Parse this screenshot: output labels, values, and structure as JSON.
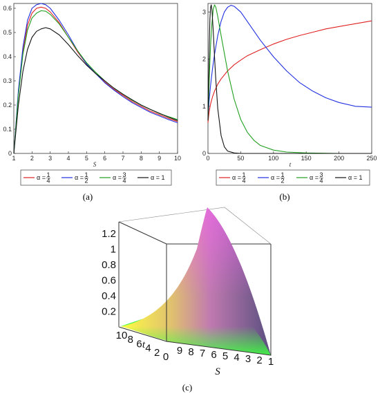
{
  "chart_data": [
    {
      "panel": "(a)",
      "type": "line",
      "xlabel": "S",
      "ylabel": "",
      "xlim": [
        1,
        10
      ],
      "ylim": [
        0,
        0.62
      ],
      "xticks": [
        "1",
        "2",
        "3",
        "4",
        "5",
        "6",
        "7",
        "8",
        "9",
        "10"
      ],
      "yticks": [
        "0",
        "0.1",
        "0.2",
        "0.3",
        "0.4",
        "0.5",
        "0.6"
      ],
      "legend_placement": "bottom",
      "series": [
        {
          "name": "α = 1/4",
          "color": "#e02020",
          "x": [
            1,
            1.25,
            1.5,
            1.75,
            2,
            2.25,
            2.5,
            2.75,
            3,
            3.5,
            4,
            4.5,
            5,
            5.5,
            6,
            6.5,
            7,
            7.5,
            8,
            8.5,
            9,
            9.5,
            10
          ],
          "y": [
            0,
            0.25,
            0.42,
            0.53,
            0.58,
            0.6,
            0.605,
            0.6,
            0.585,
            0.54,
            0.48,
            0.42,
            0.37,
            0.33,
            0.295,
            0.265,
            0.24,
            0.215,
            0.195,
            0.175,
            0.16,
            0.145,
            0.132
          ]
        },
        {
          "name": "α = 1/2",
          "color": "#2030e0",
          "x": [
            1,
            1.25,
            1.5,
            1.75,
            2,
            2.25,
            2.5,
            2.75,
            3,
            3.5,
            4,
            4.5,
            5,
            5.5,
            6,
            6.5,
            7,
            7.5,
            8,
            8.5,
            9,
            9.5,
            10
          ],
          "y": [
            0,
            0.26,
            0.44,
            0.55,
            0.6,
            0.615,
            0.62,
            0.615,
            0.6,
            0.55,
            0.49,
            0.425,
            0.37,
            0.33,
            0.292,
            0.262,
            0.235,
            0.21,
            0.19,
            0.17,
            0.155,
            0.14,
            0.127
          ]
        },
        {
          "name": "α = 3/4",
          "color": "#20a020",
          "x": [
            1,
            1.25,
            1.5,
            1.75,
            2,
            2.25,
            2.5,
            2.75,
            3,
            3.5,
            4,
            4.5,
            5,
            5.5,
            6,
            6.5,
            7,
            7.5,
            8,
            8.5,
            9,
            9.5,
            10
          ],
          "y": [
            0,
            0.24,
            0.41,
            0.51,
            0.56,
            0.58,
            0.59,
            0.588,
            0.575,
            0.535,
            0.48,
            0.425,
            0.375,
            0.335,
            0.3,
            0.27,
            0.245,
            0.22,
            0.2,
            0.182,
            0.165,
            0.152,
            0.14
          ]
        },
        {
          "name": "α = 1",
          "color": "#111111",
          "x": [
            1,
            1.25,
            1.5,
            1.75,
            2,
            2.25,
            2.5,
            2.75,
            3,
            3.5,
            4,
            4.5,
            5,
            5.5,
            6,
            6.5,
            7,
            7.5,
            8,
            8.5,
            9,
            9.5,
            10
          ],
          "y": [
            0,
            0.2,
            0.34,
            0.43,
            0.48,
            0.505,
            0.515,
            0.52,
            0.515,
            0.49,
            0.45,
            0.405,
            0.365,
            0.33,
            0.3,
            0.27,
            0.245,
            0.222,
            0.2,
            0.182,
            0.166,
            0.15,
            0.136
          ]
        }
      ]
    },
    {
      "panel": "(b)",
      "type": "line",
      "xlabel": "t",
      "ylabel": "",
      "xlim": [
        0,
        250
      ],
      "ylim": [
        0,
        3.18
      ],
      "xticks": [
        "0",
        "50",
        "100",
        "150",
        "200",
        "250"
      ],
      "yticks": [
        "0",
        "1",
        "2",
        "3"
      ],
      "legend_placement": "bottom",
      "series": [
        {
          "name": "α = 1/4",
          "color": "#e02020",
          "x": [
            0,
            1,
            2,
            4,
            7,
            10,
            15,
            20,
            30,
            40,
            50,
            60,
            80,
            100,
            120,
            140,
            160,
            180,
            200,
            225,
            250
          ],
          "y": [
            0.65,
            0.78,
            0.9,
            1.05,
            1.2,
            1.32,
            1.47,
            1.58,
            1.75,
            1.88,
            1.98,
            2.07,
            2.2,
            2.32,
            2.42,
            2.5,
            2.57,
            2.64,
            2.69,
            2.75,
            2.81
          ]
        },
        {
          "name": "α = 1/2",
          "color": "#2030e0",
          "x": [
            0,
            1,
            2,
            4,
            7,
            10,
            15,
            20,
            25,
            30,
            35,
            40,
            50,
            60,
            80,
            100,
            120,
            140,
            160,
            180,
            200,
            225,
            250
          ],
          "y": [
            0.75,
            0.95,
            1.15,
            1.45,
            1.8,
            2.1,
            2.5,
            2.8,
            3.0,
            3.1,
            3.14,
            3.12,
            3.0,
            2.8,
            2.4,
            2.05,
            1.75,
            1.5,
            1.32,
            1.18,
            1.08,
            1.0,
            0.98
          ]
        },
        {
          "name": "α = 3/4",
          "color": "#20a020",
          "x": [
            0,
            1,
            2,
            4,
            6,
            8,
            10,
            12,
            15,
            20,
            30,
            40,
            50,
            60,
            70,
            80,
            100,
            120,
            150,
            200,
            250
          ],
          "y": [
            0.7,
            1.1,
            1.6,
            2.3,
            2.75,
            3.05,
            3.15,
            3.1,
            2.9,
            2.5,
            1.75,
            1.15,
            0.72,
            0.45,
            0.28,
            0.17,
            0.07,
            0.03,
            0.01,
            0.0,
            0.0
          ]
        },
        {
          "name": "α = 1",
          "color": "#111111",
          "x": [
            0,
            1,
            2,
            3,
            4,
            5,
            6,
            7,
            8,
            10,
            12,
            15,
            20,
            25,
            30,
            40,
            50,
            70,
            100,
            250
          ],
          "y": [
            0.7,
            1.5,
            2.3,
            2.85,
            3.1,
            3.15,
            3.05,
            2.85,
            2.6,
            2.05,
            1.55,
            0.95,
            0.38,
            0.14,
            0.05,
            0.01,
            0.0,
            0.0,
            0.0,
            0.0
          ]
        }
      ]
    },
    {
      "panel": "(c)",
      "type": "surface",
      "xlabel": "S",
      "ylabel": "t",
      "zlabel": "",
      "xticks": [
        "9",
        "8",
        "7",
        "6",
        "5",
        "4",
        "3",
        "2",
        "1"
      ],
      "yticks": [
        "10",
        "8",
        "6",
        "4",
        "2",
        "0"
      ],
      "zticks": [
        "0.2",
        "0.4",
        "0.6",
        "0.8",
        "1",
        "1.2"
      ],
      "zlim": [
        0,
        1.35
      ]
    }
  ],
  "captions": {
    "a": "(a)",
    "b": "(b)",
    "c": "(c)"
  }
}
